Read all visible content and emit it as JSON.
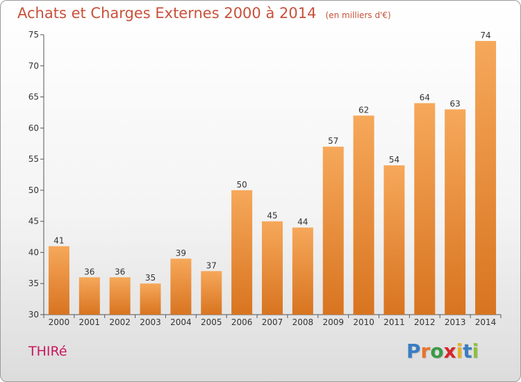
{
  "header": {
    "title": "Achats et Charges Externes 2000 à 2014",
    "unit": "(en milliers d'€)"
  },
  "footer": {
    "commune": "THIRé",
    "logo": "Proxiti"
  },
  "colors": {
    "bar_light": "#f6a85a",
    "bar_dark": "#d87420",
    "title": "#c8503a",
    "commune": "#c8175f"
  },
  "chart_data": {
    "type": "bar",
    "title": "Achats et Charges Externes 2000 à 2014",
    "subtitle": "(en milliers d'€)",
    "categories": [
      "2000",
      "2001",
      "2002",
      "2003",
      "2004",
      "2005",
      "2006",
      "2007",
      "2008",
      "2009",
      "2010",
      "2011",
      "2012",
      "2013",
      "2014"
    ],
    "values": [
      41,
      36,
      36,
      35,
      39,
      37,
      50,
      45,
      44,
      57,
      62,
      54,
      64,
      63,
      74
    ],
    "ylim": [
      30,
      75
    ],
    "yticks": [
      30,
      35,
      40,
      45,
      50,
      55,
      60,
      65,
      70,
      75
    ],
    "grid": false,
    "data_labels": true
  }
}
